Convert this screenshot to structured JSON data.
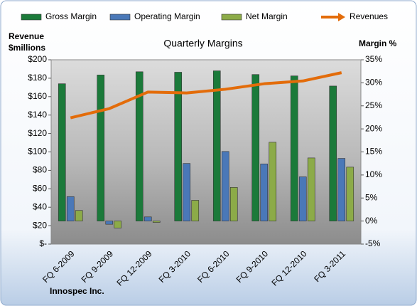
{
  "chart_data": {
    "type": "bar",
    "title": "Quarterly Margins",
    "ylabel": [
      "Revenue",
      "$millions"
    ],
    "y2label": "Margin %",
    "source": "Innospec Inc.",
    "categories": [
      "FQ 6-2009",
      "FQ 9-2009",
      "FQ 12-2009",
      "FQ 3-2010",
      "FQ 6-2010",
      "FQ 9-2010",
      "FQ 12-2010",
      "FQ 3-2011"
    ],
    "series": [
      {
        "name": "Gross Margin",
        "type": "bar",
        "axis": "y2",
        "color": "#1b7a3a",
        "values": [
          29.8,
          31.7,
          32.4,
          32.3,
          32.6,
          31.8,
          31.5,
          29.3
        ]
      },
      {
        "name": "Operating Margin",
        "type": "bar",
        "axis": "y2",
        "color": "#4a78b8",
        "values": [
          5.3,
          -0.7,
          0.9,
          12.5,
          15.1,
          12.4,
          9.6,
          13.6
        ]
      },
      {
        "name": "Net Margin",
        "type": "bar",
        "axis": "y2",
        "color": "#8cab48",
        "values": [
          2.3,
          -1.5,
          -0.3,
          4.5,
          7.3,
          17.1,
          13.7,
          11.7
        ]
      },
      {
        "name": "Revenues",
        "type": "line",
        "axis": "y",
        "color": "#e36c0a",
        "values": [
          137,
          147,
          165,
          164,
          168,
          174,
          177,
          186
        ]
      }
    ],
    "ylim": [
      0,
      200
    ],
    "yticks": [
      {
        "value": 0,
        "label": "$-"
      },
      {
        "value": 20,
        "label": "$20"
      },
      {
        "value": 40,
        "label": "$40"
      },
      {
        "value": 60,
        "label": "$60"
      },
      {
        "value": 80,
        "label": "$80"
      },
      {
        "value": 100,
        "label": "$100"
      },
      {
        "value": 120,
        "label": "$120"
      },
      {
        "value": 140,
        "label": "$140"
      },
      {
        "value": 160,
        "label": "$160"
      },
      {
        "value": 180,
        "label": "$180"
      },
      {
        "value": 200,
        "label": "$200"
      }
    ],
    "y2lim": [
      -5,
      35
    ],
    "y2ticks": [
      {
        "value": -5,
        "label": "-5%"
      },
      {
        "value": 0,
        "label": "0%"
      },
      {
        "value": 5,
        "label": "5%"
      },
      {
        "value": 10,
        "label": "10%"
      },
      {
        "value": 15,
        "label": "15%"
      },
      {
        "value": 20,
        "label": "20%"
      },
      {
        "value": 25,
        "label": "25%"
      },
      {
        "value": 30,
        "label": "30%"
      },
      {
        "value": 35,
        "label": "35%"
      }
    ],
    "legend": "top"
  }
}
